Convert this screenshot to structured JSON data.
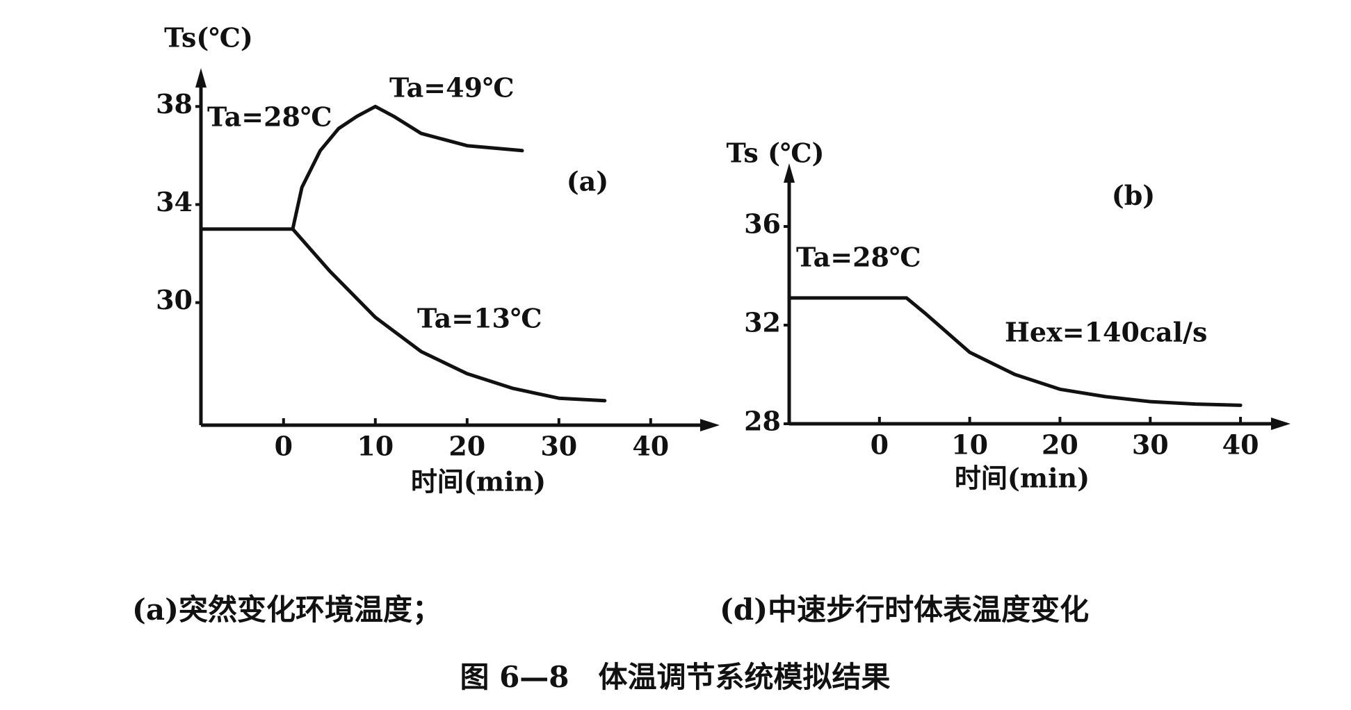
{
  "chart_data": [
    {
      "type": "line",
      "label": "(a)",
      "ylabel": "Ts(℃)",
      "xlabel": "时间(min)",
      "xlim": [
        -9,
        46
      ],
      "xticks": [
        0,
        10,
        20,
        30,
        40
      ],
      "ylim": [
        25,
        39
      ],
      "yticks": [
        30,
        34,
        38
      ],
      "series": [
        {
          "name": "Ta=28℃",
          "color": "#111111",
          "x": [
            -9,
            1
          ],
          "values": [
            33,
            33
          ]
        },
        {
          "name": "Ta=49℃",
          "color": "#111111",
          "x": [
            1,
            2,
            4,
            6,
            8,
            10,
            12,
            15,
            20,
            26
          ],
          "values": [
            33,
            34.7,
            36.2,
            37.1,
            37.6,
            38,
            37.6,
            36.9,
            36.4,
            36.2
          ]
        },
        {
          "name": "Ta=13℃",
          "color": "#111111",
          "x": [
            1,
            5,
            10,
            15,
            20,
            25,
            30,
            35
          ],
          "values": [
            33,
            31.3,
            29.4,
            28.0,
            27.1,
            26.5,
            26.1,
            26.0
          ]
        }
      ]
    },
    {
      "type": "line",
      "label": "(b)",
      "ylabel": "Ts (℃)",
      "xlabel": "时间(min)",
      "xlim": [
        -10,
        44
      ],
      "xticks": [
        0,
        10,
        20,
        30,
        40
      ],
      "ylim": [
        28,
        38
      ],
      "yticks": [
        28,
        32,
        36
      ],
      "annotations": [
        "Ta=28℃"
      ],
      "series": [
        {
          "name": "Hex=140cal/s",
          "color": "#111111",
          "x": [
            -10,
            3,
            5,
            10,
            15,
            20,
            25,
            30,
            35,
            40
          ],
          "values": [
            33.1,
            33.1,
            32.5,
            30.9,
            30.0,
            29.4,
            29.1,
            28.9,
            28.8,
            28.75
          ]
        }
      ]
    }
  ],
  "figure": {
    "captions": [
      "(a)突然变化环境温度；",
      "(d)中速步行时体表温度变化"
    ],
    "title": "图 6—8　体温调节系统模拟结果"
  }
}
